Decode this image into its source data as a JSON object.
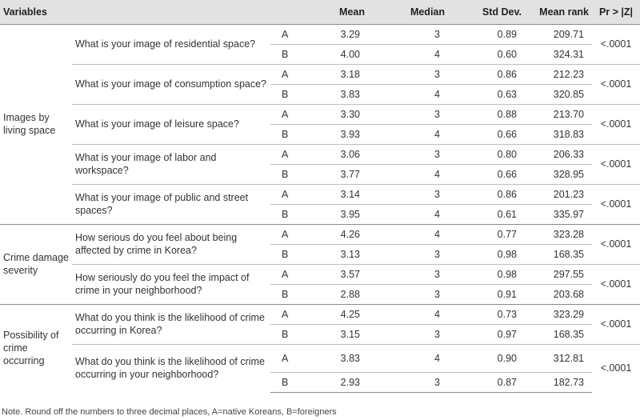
{
  "table": {
    "headers": {
      "variables": "Variables",
      "mean": "Mean",
      "median": "Median",
      "std": "Std Dev.",
      "mean_rank": "Mean rank",
      "p": "Pr > |Z|"
    },
    "groups": [
      {
        "label": "Images by living space",
        "questions": [
          {
            "text": "What is your image of residential space?",
            "p": "<.0001",
            "rows": [
              {
                "group": "A",
                "mean": "3.29",
                "median": "3",
                "std": "0.89",
                "rank": "209.71"
              },
              {
                "group": "B",
                "mean": "4.00",
                "median": "4",
                "std": "0.60",
                "rank": "324.31"
              }
            ]
          },
          {
            "text": "What is your image of consumption space?",
            "p": "<.0001",
            "rows": [
              {
                "group": "A",
                "mean": "3.18",
                "median": "3",
                "std": "0.86",
                "rank": "212.23"
              },
              {
                "group": "B",
                "mean": "3.83",
                "median": "4",
                "std": "0.63",
                "rank": "320.85"
              }
            ]
          },
          {
            "text": "What is your image of leisure space?",
            "p": "<.0001",
            "rows": [
              {
                "group": "A",
                "mean": "3.30",
                "median": "3",
                "std": "0.88",
                "rank": "213.70"
              },
              {
                "group": "B",
                "mean": "3.93",
                "median": "4",
                "std": "0.66",
                "rank": "318.83"
              }
            ]
          },
          {
            "text": "What is your image of labor and workspace?",
            "p": "<.0001",
            "rows": [
              {
                "group": "A",
                "mean": "3.06",
                "median": "3",
                "std": "0.80",
                "rank": "206.33"
              },
              {
                "group": "B",
                "mean": "3.77",
                "median": "4",
                "std": "0.66",
                "rank": "328.95"
              }
            ]
          },
          {
            "text": "What is your image of public and street spaces?",
            "p": "<.0001",
            "rows": [
              {
                "group": "A",
                "mean": "3.14",
                "median": "3",
                "std": "0.86",
                "rank": "201.23"
              },
              {
                "group": "B",
                "mean": "3.95",
                "median": "4",
                "std": "0.61",
                "rank": "335.97"
              }
            ]
          }
        ]
      },
      {
        "label": "Crime damage severity",
        "questions": [
          {
            "text": "How serious do you feel about being affected by crime in Korea?",
            "p": "<.0001",
            "rows": [
              {
                "group": "A",
                "mean": "4.26",
                "median": "4",
                "std": "0.77",
                "rank": "323.28"
              },
              {
                "group": "B",
                "mean": "3.13",
                "median": "3",
                "std": "0.98",
                "rank": "168.35"
              }
            ]
          },
          {
            "text": "How seriously do you feel the impact of crime in your neighborhood?",
            "p": "<.0001",
            "rows": [
              {
                "group": "A",
                "mean": "3.57",
                "median": "3",
                "std": "0.98",
                "rank": "297.55"
              },
              {
                "group": "B",
                "mean": "2.88",
                "median": "3",
                "std": "0.91",
                "rank": "203.68"
              }
            ]
          }
        ]
      },
      {
        "label": "Possibility of crime occurring",
        "questions": [
          {
            "text": "What do you think is the likelihood of crime occurring in Korea?",
            "p": "<.0001",
            "rows": [
              {
                "group": "A",
                "mean": "4.25",
                "median": "4",
                "std": "0.73",
                "rank": "323.29"
              },
              {
                "group": "B",
                "mean": "3.15",
                "median": "3",
                "std": "0.97",
                "rank": "168.35"
              }
            ]
          },
          {
            "text": "What do you think is the likelihood of crime occurring in your neighborhood?",
            "p": "<.0001",
            "rows": [
              {
                "group": "A",
                "mean": "3.83",
                "median": "4",
                "std": "0.90",
                "rank": "312.81"
              },
              {
                "group": "B",
                "mean": "2.93",
                "median": "3",
                "std": "0.87",
                "rank": "182.73"
              }
            ]
          }
        ]
      }
    ]
  },
  "note": "Note. Round off the numbers to three decimal places, A=native Koreans, B=foreigners"
}
